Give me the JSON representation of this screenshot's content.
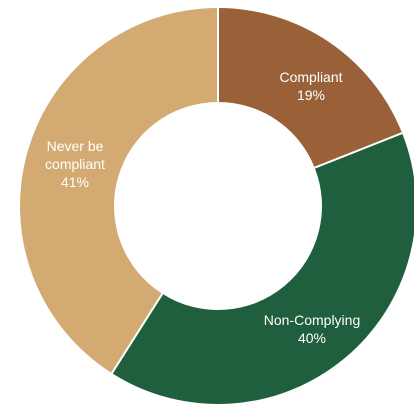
{
  "chart_data": {
    "type": "pie",
    "subtype": "donut",
    "slices": [
      {
        "label_lines": [
          "Compliant",
          "19%"
        ],
        "value": 19,
        "color": "#9a6139"
      },
      {
        "label_lines": [
          "Non-Complying",
          "40%"
        ],
        "value": 40,
        "color": "#1f5f3d"
      },
      {
        "label_lines": [
          "Never be",
          "compliant",
          "41%"
        ],
        "value": 41,
        "color": "#d3ab72"
      }
    ]
  }
}
